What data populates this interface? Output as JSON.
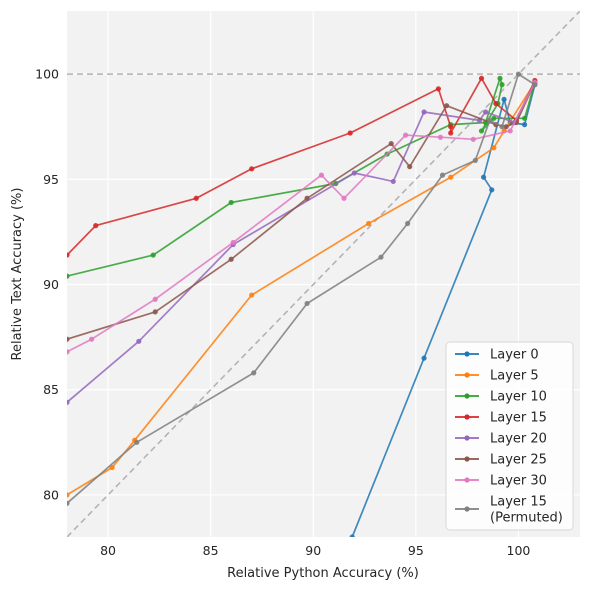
{
  "chart_data": {
    "type": "line",
    "xlabel": "Relative Python Accuracy (%)",
    "ylabel": "Relative Text Accuracy (%)",
    "xlim": [
      78,
      103
    ],
    "ylim": [
      78,
      103
    ],
    "xticks": [
      80,
      85,
      90,
      95,
      100
    ],
    "yticks": [
      80,
      85,
      90,
      95,
      100
    ],
    "grid": true,
    "legend_position": "bottom-right",
    "reference_lines": [
      {
        "kind": "horizontal",
        "y": 100,
        "style": "dashed",
        "color": "#b3b3b3"
      },
      {
        "kind": "diagonal",
        "style": "dashed",
        "color": "#b3b3b3"
      }
    ],
    "series": [
      {
        "name": "Layer 0",
        "color": "#1f77b4",
        "x": [
          91.9,
          95.4,
          98.7,
          98.3,
          99.3,
          99.6,
          100.3,
          100.8
        ],
        "y": [
          78.0,
          86.5,
          94.5,
          95.1,
          98.8,
          97.7,
          97.6,
          99.5
        ]
      },
      {
        "name": "Layer 5",
        "color": "#ff7f0e",
        "x": [
          78.0,
          80.2,
          81.3,
          87.0,
          92.7,
          96.7,
          98.8,
          99.3,
          100.8
        ],
        "y": [
          80.0,
          81.3,
          82.6,
          89.5,
          92.9,
          95.1,
          96.5,
          97.3,
          99.6
        ]
      },
      {
        "name": "Layer 10",
        "color": "#2ca02c",
        "x": [
          78.0,
          82.2,
          86.0,
          91.1,
          93.6,
          96.7,
          98.4,
          99.1,
          99.2,
          99.0,
          98.2,
          98.8,
          100.3,
          100.8
        ],
        "y": [
          90.4,
          91.4,
          93.9,
          94.8,
          96.2,
          97.6,
          97.7,
          99.8,
          99.5,
          98.6,
          97.3,
          97.9,
          97.9,
          99.6
        ]
      },
      {
        "name": "Layer 15",
        "color": "#d62728",
        "x": [
          78.0,
          79.4,
          84.3,
          87.0,
          91.8,
          96.1,
          96.7,
          96.7,
          98.2,
          98.9,
          99.9,
          100.8
        ],
        "y": [
          91.4,
          92.8,
          94.1,
          95.5,
          97.2,
          99.3,
          97.5,
          97.2,
          99.8,
          98.6,
          97.8,
          99.7
        ]
      },
      {
        "name": "Layer 20",
        "color": "#9467bd",
        "x": [
          78.0,
          81.5,
          86.1,
          92.0,
          93.9,
          95.4,
          98.1,
          98.4,
          99.8,
          100.8
        ],
        "y": [
          84.4,
          87.3,
          91.9,
          95.3,
          94.9,
          98.2,
          97.8,
          98.2,
          97.7,
          99.6
        ]
      },
      {
        "name": "Layer 25",
        "color": "#8c564b",
        "x": [
          78.0,
          82.3,
          86.0,
          89.7,
          93.8,
          94.7,
          96.5,
          98.9,
          99.4,
          99.9,
          100.8
        ],
        "y": [
          87.4,
          88.7,
          91.2,
          94.1,
          96.7,
          95.6,
          98.5,
          97.6,
          97.5,
          97.7,
          99.6
        ]
      },
      {
        "name": "Layer 30",
        "color": "#e377c2",
        "x": [
          78.0,
          79.2,
          82.3,
          86.1,
          90.4,
          91.5,
          94.5,
          96.2,
          97.8,
          99.6,
          100.8
        ],
        "y": [
          86.8,
          87.4,
          89.3,
          92.0,
          95.2,
          94.1,
          97.1,
          97.0,
          96.9,
          97.3,
          99.6
        ]
      },
      {
        "name": "Layer 15\n(Permuted)",
        "color": "#7f7f7f",
        "x": [
          78.0,
          81.4,
          87.1,
          89.7,
          93.3,
          94.6,
          96.3,
          97.9,
          98.6,
          99.2,
          100.0,
          100.8
        ],
        "y": [
          79.6,
          82.5,
          85.8,
          89.1,
          91.3,
          92.9,
          95.2,
          95.9,
          97.8,
          97.5,
          100.0,
          99.5
        ]
      }
    ]
  }
}
